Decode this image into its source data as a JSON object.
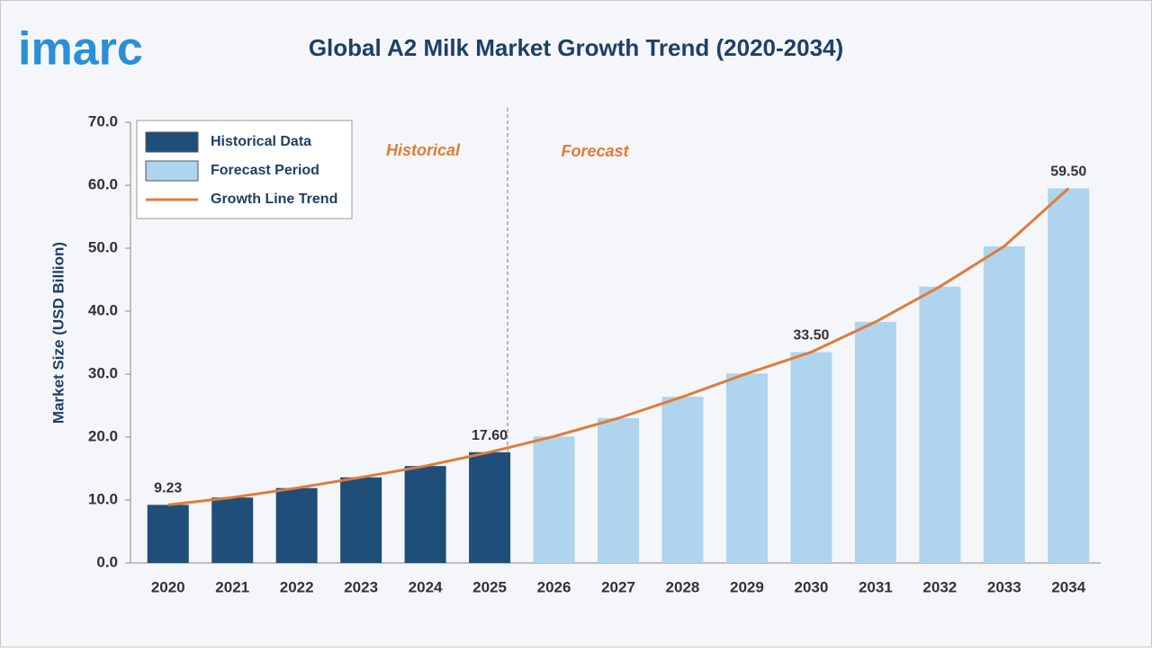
{
  "logo": "imarc",
  "chart_data": {
    "type": "bar",
    "title": "Global A2 Milk Market Growth Trend (2020-2034)",
    "y_label": "Market Size (USD Billion)",
    "annotations": [
      "Historical",
      "Forecast"
    ],
    "categories": [
      "2020",
      "2021",
      "2022",
      "2023",
      "2024",
      "2025",
      "2026",
      "2027",
      "2028",
      "2029",
      "2030",
      "2031",
      "2032",
      "2033",
      "2034"
    ],
    "series": [
      {
        "name": "Historical Data",
        "color": "#1f4e79",
        "values": [
          9.23,
          10.4,
          11.9,
          13.6,
          15.4,
          17.6,
          null,
          null,
          null,
          null,
          null,
          null,
          null,
          null,
          null
        ]
      },
      {
        "name": "Forecast Period",
        "color": "#aed4ee",
        "values": [
          null,
          null,
          null,
          null,
          null,
          null,
          20.1,
          23.0,
          26.4,
          30.1,
          33.5,
          38.3,
          43.9,
          50.3,
          59.5
        ]
      },
      {
        "name": "Growth Line Trend",
        "color": "#e07b39",
        "type": "line",
        "values": [
          9.23,
          10.4,
          11.9,
          13.6,
          15.4,
          17.6,
          20.1,
          23.0,
          26.4,
          30.1,
          33.5,
          38.3,
          43.9,
          50.3,
          59.5
        ],
        "value_labels": [
          "9.23",
          null,
          null,
          null,
          null,
          "17.60",
          null,
          null,
          null,
          null,
          "33.50",
          null,
          null,
          null,
          "59.50"
        ]
      }
    ],
    "ylim": [
      0,
      70
    ],
    "yticks": [
      {
        "value": 0,
        "label": "0.0"
      },
      {
        "value": 10,
        "label": "10.0"
      },
      {
        "value": 20,
        "label": "20.0"
      },
      {
        "value": 30,
        "label": "30.0"
      },
      {
        "value": 40,
        "label": "40.0"
      },
      {
        "value": 50,
        "label": "50.0"
      },
      {
        "value": 60,
        "label": "60.0"
      },
      {
        "value": 70,
        "label": "70.0"
      }
    ],
    "legend": "top-left"
  }
}
